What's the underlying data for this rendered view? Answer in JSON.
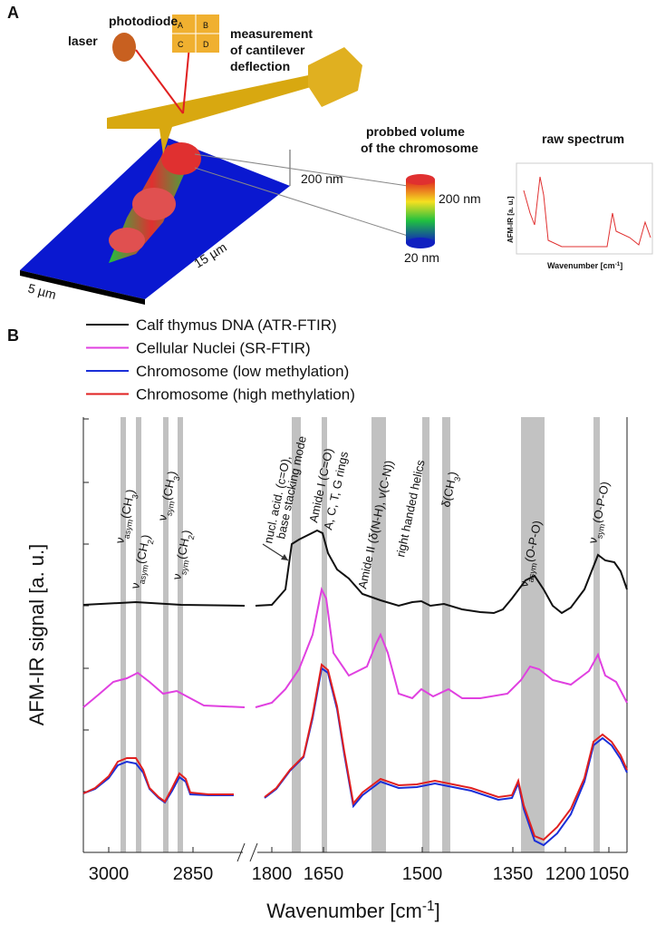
{
  "panel_a": {
    "label": "A",
    "photodiode": "photodiode",
    "laser": "laser",
    "quadrants": [
      "A",
      "B",
      "C",
      "D"
    ],
    "measurement": [
      "measurement",
      "of cantilever",
      "deflection"
    ],
    "probed_volume": [
      "probbed volume",
      "of the chromosome"
    ],
    "raw_spectrum": "raw spectrum",
    "height_scale": "200 nm",
    "cylinder_top": "200 nm",
    "cylinder_bottom": "20 nm",
    "length": "15 µm",
    "width": "5 µm",
    "raw_y_label": "AFM-IR [a. u.]",
    "raw_x_label": [
      "Wavenumber [cm",
      "-1",
      "]"
    ]
  },
  "panel_b": {
    "label": "B",
    "legend": [
      {
        "name": "Calf thymus DNA (ATR-FTIR)",
        "color": "#111111"
      },
      {
        "name": "Cellular Nuclei (SR-FTIR)",
        "color": "#e040e0"
      },
      {
        "name": "Chromosome (low methylation)",
        "color": "#1a2fd8"
      },
      {
        "name": "Chromosome (high methylation)",
        "color": "#e02020"
      }
    ],
    "y_label": "AFM-IR signal [a. u.]",
    "x_label": [
      "Wavenumber [cm",
      "-1",
      "]"
    ],
    "x_ticks": [
      "3000",
      "2850",
      "1800",
      "1650",
      "1500",
      "1350",
      "1200",
      "1050"
    ],
    "annotations": [
      [
        "ν",
        "asym",
        "(CH",
        "3",
        ")"
      ],
      [
        "ν",
        "asym",
        "(CH",
        "2",
        ")"
      ],
      [
        "ν",
        "sym",
        "(CH",
        "3",
        ")"
      ],
      [
        "ν",
        "sym",
        "(CH",
        "2",
        ")"
      ],
      "nucl. acid. (c=O),",
      "base stacking mode",
      "Amide I (C=O)",
      "A, C, T, G rings",
      "Amide II (δ(N-H), ν(C-N))",
      "right handed helics",
      [
        "δ(CH",
        "3",
        ")"
      ],
      [
        "ν",
        "asym",
        "(O-P-O)"
      ],
      [
        "ν",
        "sym",
        "(O-P-O)"
      ]
    ]
  }
}
